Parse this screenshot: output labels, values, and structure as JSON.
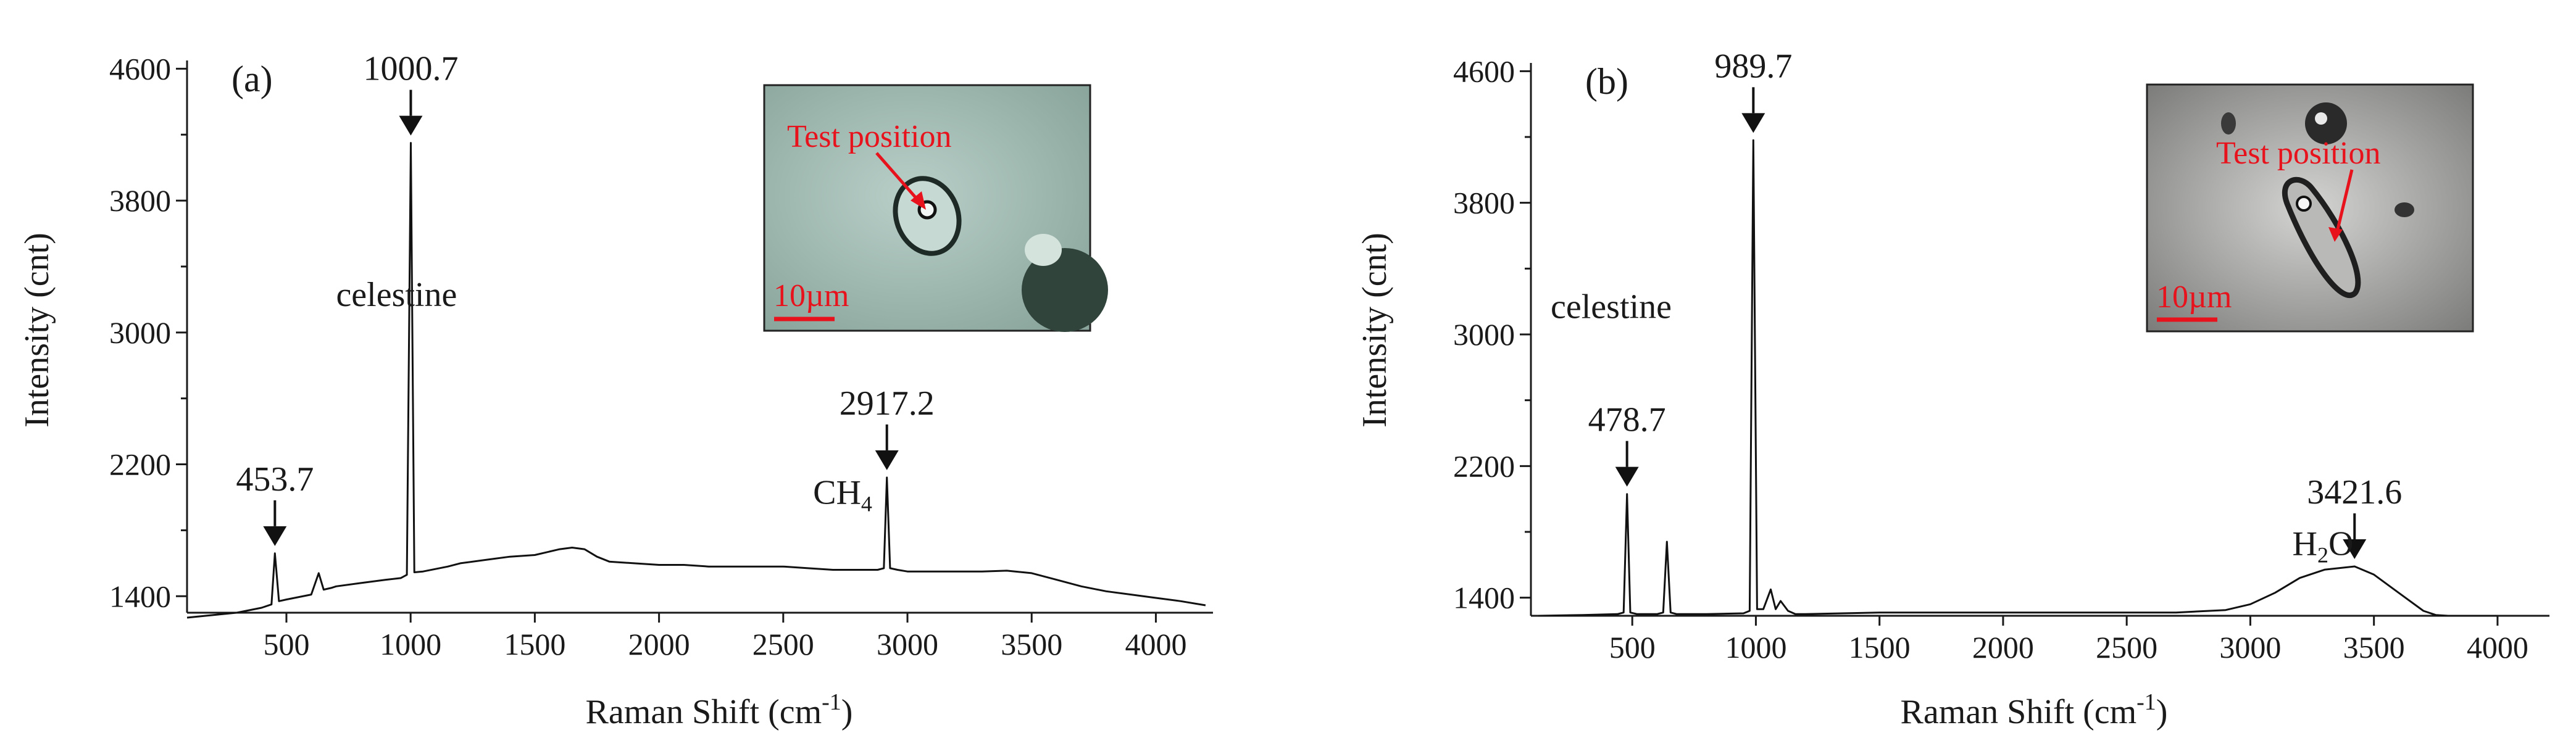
{
  "chart_data": [
    {
      "type": "line",
      "panel_label": "(a)",
      "xlabel": "Raman Shift (cm",
      "xlabel_sup": "-1",
      "xlabel_close": ")",
      "ylabel": "Intensity (cnt)",
      "xlim": [
        100,
        4230
      ],
      "ylim": [
        1300,
        4650
      ],
      "xticks": [
        500,
        1000,
        1500,
        2000,
        2500,
        3000,
        3500,
        4000
      ],
      "xtick_labels": [
        "500",
        "1000",
        "1500",
        "2000",
        "2500",
        "3000",
        "3500",
        "4000"
      ],
      "yticks": [
        1400,
        2200,
        3000,
        3800,
        4600
      ],
      "ytick_labels": [
        "1400",
        "2200",
        "3000",
        "3800",
        "4600"
      ],
      "series": [
        {
          "name": "spectrum",
          "x": [
            100,
            200,
            300,
            400,
            440,
            453.7,
            470,
            500,
            600,
            630,
            650,
            680,
            700,
            800,
            900,
            960,
            985,
            1000.7,
            1015,
            1050,
            1100,
            1150,
            1200,
            1300,
            1400,
            1500,
            1600,
            1650,
            1700,
            1750,
            1800,
            1900,
            2000,
            2100,
            2200,
            2300,
            2400,
            2500,
            2600,
            2700,
            2800,
            2880,
            2905,
            2917.2,
            2930,
            2960,
            3000,
            3100,
            3200,
            3300,
            3400,
            3500,
            3600,
            3700,
            3800,
            3900,
            4000,
            4100,
            4200
          ],
          "y": [
            1270,
            1285,
            1300,
            1330,
            1350,
            1660,
            1370,
            1380,
            1410,
            1540,
            1440,
            1450,
            1460,
            1480,
            1500,
            1510,
            1530,
            4150,
            1545,
            1550,
            1565,
            1580,
            1600,
            1620,
            1640,
            1650,
            1685,
            1695,
            1685,
            1640,
            1610,
            1600,
            1590,
            1590,
            1580,
            1580,
            1580,
            1580,
            1570,
            1560,
            1560,
            1560,
            1570,
            2120,
            1570,
            1560,
            1550,
            1550,
            1550,
            1550,
            1555,
            1540,
            1500,
            1460,
            1430,
            1410,
            1390,
            1370,
            1345
          ]
        }
      ],
      "peaks": [
        {
          "x": 453.7,
          "label": "453.7"
        },
        {
          "x": 1000.7,
          "label": "1000.7"
        },
        {
          "x": 2917.2,
          "label": "2917.2"
        }
      ],
      "annotations": [
        {
          "text": "celestine",
          "x": 700,
          "y": 3160
        },
        {
          "text": "CH",
          "sub": "4",
          "x": 2620,
          "y": 1960
        }
      ],
      "inset": {
        "text": "Test position",
        "scale": "10µm"
      }
    },
    {
      "type": "line",
      "panel_label": "(b)",
      "xlabel": "Raman Shift (cm",
      "xlabel_sup": "-1",
      "xlabel_close": ")",
      "ylabel": "Intensity (cnt)",
      "xlim": [
        90,
        4210
      ],
      "ylim": [
        1290,
        4650
      ],
      "xticks": [
        500,
        1000,
        1500,
        2000,
        2500,
        3000,
        3500,
        4000
      ],
      "xtick_labels": [
        "500",
        "1000",
        "1500",
        "2000",
        "2500",
        "3000",
        "3500",
        "4000"
      ],
      "yticks": [
        1400,
        2200,
        3000,
        3800,
        4600
      ],
      "ytick_labels": [
        "1400",
        "2200",
        "3000",
        "3800",
        "4600"
      ],
      "series": [
        {
          "name": "spectrum",
          "x": [
            120,
            300,
            440,
            465,
            478.7,
            492,
            520,
            600,
            625,
            640,
            655,
            680,
            800,
            950,
            975,
            989.7,
            1005,
            1030,
            1060,
            1080,
            1100,
            1130,
            1160,
            1200,
            1500,
            2000,
            2500,
            2700,
            2900,
            3000,
            3100,
            3200,
            3300,
            3421.6,
            3500,
            3600,
            3700,
            3750,
            3800,
            4000
          ],
          "y": [
            1290,
            1295,
            1300,
            1310,
            2030,
            1310,
            1300,
            1300,
            1310,
            1740,
            1310,
            1300,
            1300,
            1305,
            1320,
            4180,
            1330,
            1330,
            1450,
            1330,
            1380,
            1320,
            1300,
            1300,
            1310,
            1310,
            1310,
            1310,
            1325,
            1360,
            1430,
            1520,
            1570,
            1590,
            1540,
            1430,
            1320,
            1295,
            1290,
            1290
          ]
        }
      ],
      "peaks": [
        {
          "x": 478.7,
          "label": "478.7"
        },
        {
          "x": 989.7,
          "label": "989.7"
        },
        {
          "x": 3421.6,
          "label": "3421.6"
        }
      ],
      "annotations": [
        {
          "text": "celestine",
          "x": 170,
          "y": 3100
        },
        {
          "text": "H",
          "sub": "2",
          "after": "O",
          "x": 3170,
          "y": 1660
        }
      ],
      "inset": {
        "text": "Test position",
        "scale": "10µm"
      }
    }
  ]
}
